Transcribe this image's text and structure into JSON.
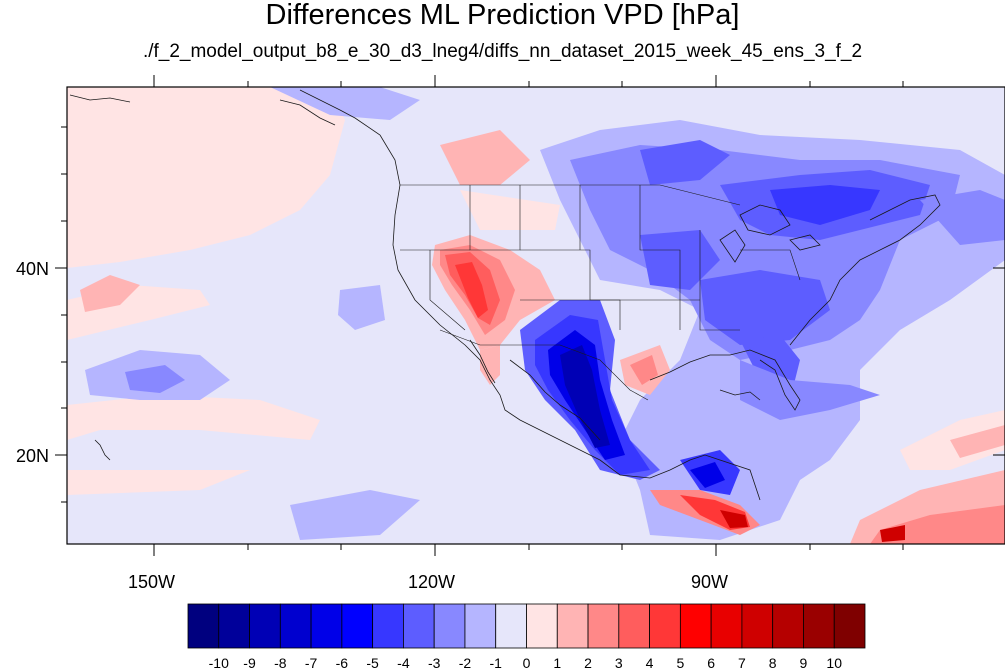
{
  "title": "Differences ML Prediction VPD [hPa]",
  "subtitle": "./f_2_model_output_b8_e_30_d3_lneg4/diffs_nn_dataset_2015_week_45_ens_3_f_2",
  "map": {
    "lon_range": [
      -160,
      -58
    ],
    "lat_range": [
      11,
      60
    ],
    "lon_ticks": [
      "150W",
      "120W",
      "90W"
    ],
    "lat_ticks": [
      "40N",
      "20N"
    ]
  },
  "colorbar": {
    "labels": [
      "-10",
      "-9",
      "-8",
      "-7",
      "-6",
      "-5",
      "-4",
      "-3",
      "-2",
      "-1",
      "0",
      "1",
      "2",
      "3",
      "4",
      "5",
      "6",
      "7",
      "8",
      "9",
      "10"
    ],
    "colors": [
      "#00007f",
      "#00009a",
      "#0000b5",
      "#0000cf",
      "#0000e8",
      "#0000ff",
      "#3737ff",
      "#5d5dff",
      "#8888ff",
      "#b5b5ff",
      "#e6e6fa",
      "#ffe4e4",
      "#ffb4b4",
      "#ff8888",
      "#ff5d5d",
      "#ff3737",
      "#ff0000",
      "#e80000",
      "#cf0000",
      "#b50000",
      "#9a0000",
      "#7f0000"
    ]
  }
}
